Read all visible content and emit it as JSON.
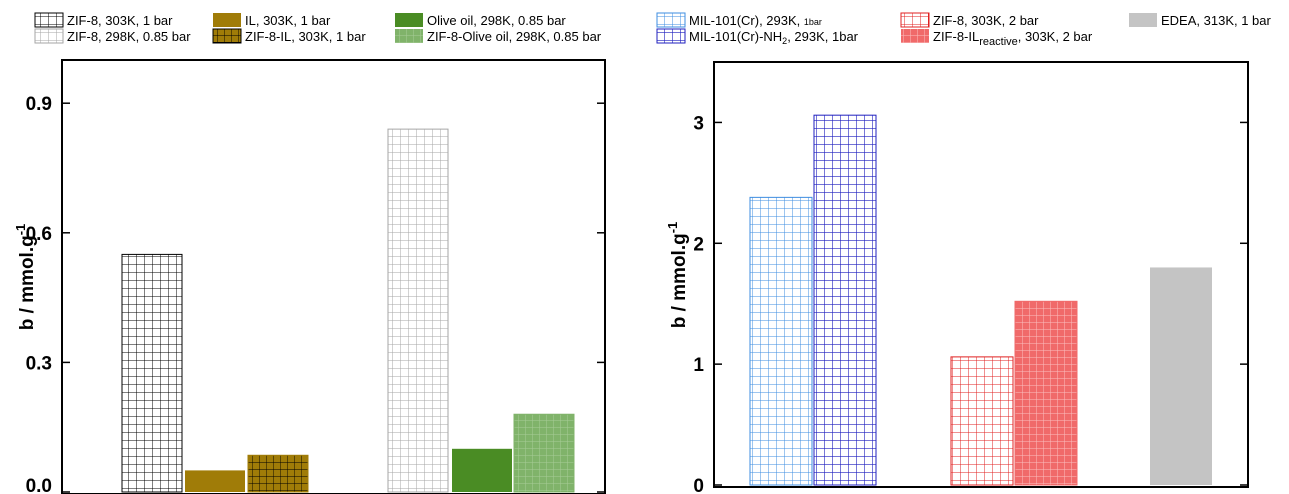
{
  "chart_data": [
    {
      "type": "bar",
      "ylabel": "b / mmol.g",
      "ylabel_superscript": "-1",
      "ylim": [
        0,
        1.0
      ],
      "yticks": [
        "0.0",
        "0.3",
        "0.6",
        "0.9"
      ],
      "ytick_values": [
        0,
        0.3,
        0.6,
        0.9
      ],
      "grid": false,
      "legend_position": "top",
      "series": [
        {
          "name": "ZIF-8, 303K, 1 bar",
          "values": [
            0.55
          ],
          "color": "#000000",
          "fill": "grid",
          "group": 0
        },
        {
          "name": "IL, 303K, 1 bar",
          "values": [
            0.05
          ],
          "color": "#a07c08",
          "fill": "solid",
          "group": 0
        },
        {
          "name": "ZIF-8-IL, 303K, 1 bar",
          "values": [
            0.085
          ],
          "color": "#a07c08",
          "fill": "grid",
          "group": 0
        },
        {
          "name": "ZIF-8, 298K, 0.85 bar",
          "values": [
            0.84
          ],
          "color": "#a6a6a6",
          "fill": "grid",
          "group": 1
        },
        {
          "name": "Olive oil, 298K, 0.85 bar",
          "values": [
            0.1
          ],
          "color": "#4a8c24",
          "fill": "solid",
          "group": 1
        },
        {
          "name": "ZIF-8-Olive oil, 298K, 0.85 bar",
          "values": [
            0.18
          ],
          "color": "#80b36a",
          "fill": "grid",
          "group": 1
        }
      ]
    },
    {
      "type": "bar",
      "ylabel": "b / mmol.g",
      "ylabel_superscript": "-1",
      "ylim": [
        0,
        3.5
      ],
      "yticks": [
        "0",
        "1",
        "2",
        "3"
      ],
      "ytick_values": [
        0,
        1,
        2,
        3
      ],
      "grid": false,
      "legend_position": "top",
      "series": [
        {
          "name": "MIL-101(Cr), 293K, 1bar",
          "values": [
            2.38
          ],
          "color": "#3d8de0",
          "fill": "grid",
          "group": 0
        },
        {
          "name": "MIL-101(Cr)-NH2, 293K, 1bar",
          "values": [
            3.06
          ],
          "color": "#1f1fbf",
          "fill": "grid",
          "group": 0
        },
        {
          "name": "ZIF-8, 303K, 2 bar",
          "values": [
            1.06
          ],
          "color": "#e02020",
          "fill": "grid",
          "group": 1
        },
        {
          "name": "ZIF-8-ILreactive, 303K, 2 bar",
          "values": [
            1.52
          ],
          "color": "#f06a6a",
          "fill": "grid",
          "group": 1
        },
        {
          "name": "EDEA, 313K, 1 bar",
          "values": [
            1.8
          ],
          "color": "#c4c4c4",
          "fill": "solid",
          "group": 2
        }
      ]
    }
  ],
  "legend_left": {
    "items": [
      {
        "text": "ZIF-8, 303K, 1 bar"
      },
      {
        "text": "IL, 303K, 1 bar"
      },
      {
        "text": "Olive oil, 298K, 0.85 bar"
      },
      {
        "text": "ZIF-8, 298K, 0.85 bar"
      },
      {
        "text": "ZIF-8-IL, 303K, 1 bar"
      },
      {
        "text": "ZIF-8-Olive oil, 298K, 0.85 bar"
      }
    ]
  },
  "legend_right": {
    "items": [
      {
        "main": "MIL-101(Cr), 293K, ",
        "sub": "1bar",
        "tail": ""
      },
      {
        "main": "ZIF-8, 303K, 2 bar",
        "sub": "",
        "tail": ""
      },
      {
        "main": "EDEA, 313K, 1 bar",
        "sub": "",
        "tail": ""
      },
      {
        "main": "MIL-101(Cr)-NH",
        "sub": "2",
        "tail": ", 293K, 1bar"
      },
      {
        "main": "ZIF-8-IL",
        "sub": "reactive",
        "tail": ", 303K, 2 bar"
      }
    ]
  }
}
